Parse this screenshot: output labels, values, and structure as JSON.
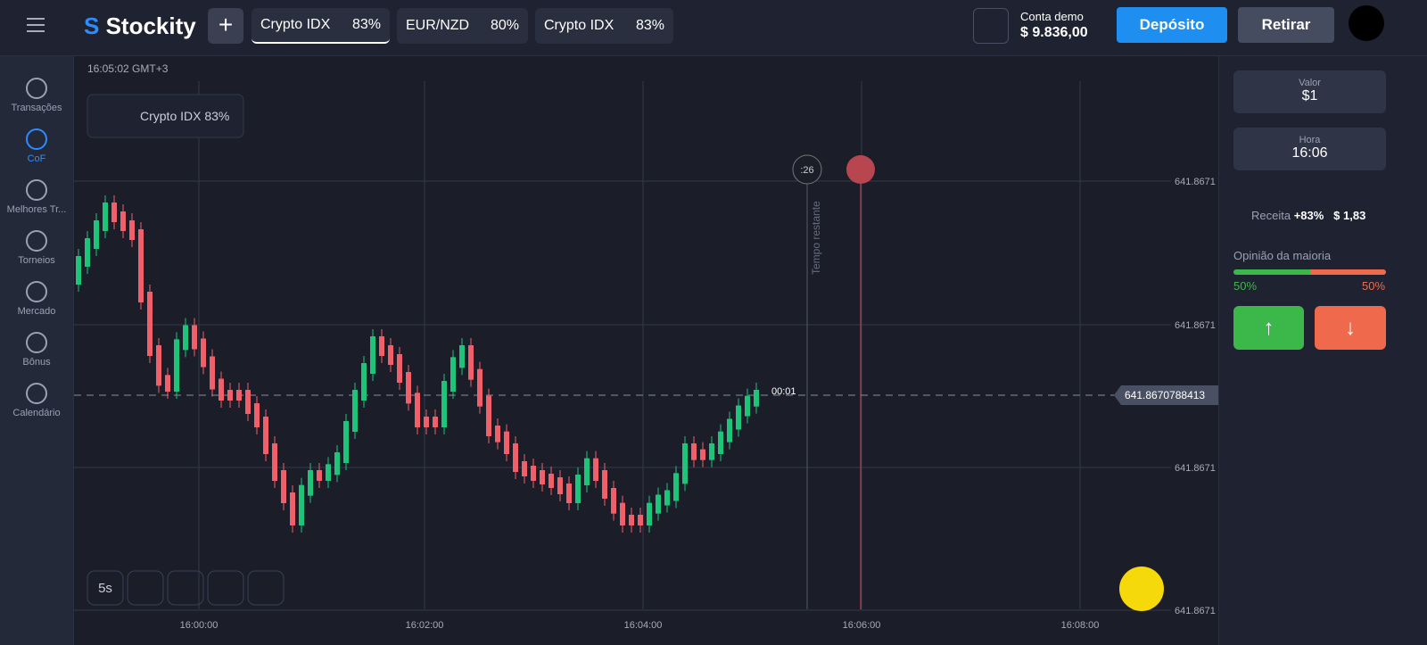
{
  "header": {
    "brand": "Stockity",
    "tabs": [
      {
        "name": "Crypto IDX",
        "pct": "83%"
      },
      {
        "name": "EUR/NZD",
        "pct": "80%"
      },
      {
        "name": "Crypto IDX",
        "pct": "83%"
      }
    ],
    "account_label": "Conta demo",
    "balance": "$ 9.836,00",
    "deposit": "Depósito",
    "withdraw": "Retirar"
  },
  "sidebar": [
    "Transações",
    "CoF",
    "Melhores Tr...",
    "Torneios",
    "Mercado",
    "Bônus",
    "Calendário"
  ],
  "chart": {
    "clock": "16:05:02 GMT+3",
    "asset": "Crypto IDX 83%",
    "y_labels": [
      "641.8671",
      "641.8671",
      "641.8671",
      "641.8671"
    ],
    "price_label": "641.8670788413",
    "countdown": "00:01",
    "remaining": ":26",
    "remaining_label": "Tempo restante",
    "x_labels": [
      "16:00:00",
      "16:02:00",
      "16:04:00",
      "16:06:00",
      "16:08:00"
    ],
    "interval": "5s"
  },
  "panel": {
    "amount_label": "Valor",
    "amount": "$1",
    "time_label": "Hora",
    "time": "16:06",
    "income_label": "Receita",
    "income_pct": "+83%",
    "income": "$ 1,83",
    "opinion_label": "Opinião da maioria",
    "up_pct": "50%",
    "down_pct": "50%"
  }
}
